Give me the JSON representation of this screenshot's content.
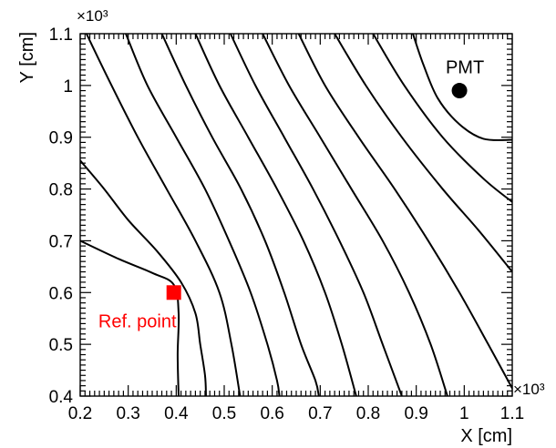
{
  "chart_data": {
    "type": "line",
    "xlabel": "X [cm]",
    "ylabel": "Y [cm]",
    "x_exponent_label": "×10³",
    "y_exponent_label": "×10³",
    "xlim": [
      0.2,
      1.1
    ],
    "ylim": [
      0.4,
      1.1
    ],
    "x_ticks": [
      {
        "value": 0.2,
        "label": "0.2"
      },
      {
        "value": 0.3,
        "label": "0.3"
      },
      {
        "value": 0.4,
        "label": "0.4"
      },
      {
        "value": 0.5,
        "label": "0.5"
      },
      {
        "value": 0.6,
        "label": "0.6"
      },
      {
        "value": 0.7,
        "label": "0.7"
      },
      {
        "value": 0.8,
        "label": "0.8"
      },
      {
        "value": 0.9,
        "label": "0.9"
      },
      {
        "value": 1.0,
        "label": "1"
      },
      {
        "value": 1.1,
        "label": "1.1"
      }
    ],
    "y_ticks": [
      {
        "value": 0.4,
        "label": "0.4"
      },
      {
        "value": 0.5,
        "label": "0.5"
      },
      {
        "value": 0.6,
        "label": "0.6"
      },
      {
        "value": 0.7,
        "label": "0.7"
      },
      {
        "value": 0.8,
        "label": "0.8"
      },
      {
        "value": 0.9,
        "label": "0.9"
      },
      {
        "value": 1.0,
        "label": "1"
      },
      {
        "value": 1.1,
        "label": "1.1"
      }
    ],
    "grid": false,
    "line_color": "#000000",
    "contours": [
      {
        "points": [
          [
            0.2,
            0.7
          ],
          [
            0.28,
            0.665
          ],
          [
            0.35,
            0.638
          ],
          [
            0.395,
            0.615
          ],
          [
            0.405,
            0.56
          ],
          [
            0.403,
            0.48
          ],
          [
            0.405,
            0.4
          ]
        ]
      },
      {
        "points": [
          [
            0.2,
            0.855
          ],
          [
            0.25,
            0.8
          ],
          [
            0.3,
            0.74
          ],
          [
            0.36,
            0.68
          ],
          [
            0.41,
            0.62
          ],
          [
            0.44,
            0.56
          ],
          [
            0.45,
            0.5
          ],
          [
            0.46,
            0.44
          ],
          [
            0.462,
            0.4
          ]
        ]
      },
      {
        "points": [
          [
            0.213,
            1.1
          ],
          [
            0.26,
            1.01
          ],
          [
            0.32,
            0.9
          ],
          [
            0.38,
            0.8
          ],
          [
            0.44,
            0.7
          ],
          [
            0.49,
            0.6
          ],
          [
            0.515,
            0.5
          ],
          [
            0.533,
            0.4
          ]
        ]
      },
      {
        "points": [
          [
            0.295,
            1.1
          ],
          [
            0.34,
            1.0
          ],
          [
            0.4,
            0.9
          ],
          [
            0.46,
            0.8
          ],
          [
            0.51,
            0.7
          ],
          [
            0.555,
            0.6
          ],
          [
            0.59,
            0.5
          ],
          [
            0.61,
            0.43
          ],
          [
            0.615,
            0.4
          ]
        ]
      },
      {
        "points": [
          [
            0.37,
            1.1
          ],
          [
            0.42,
            1.0
          ],
          [
            0.475,
            0.9
          ],
          [
            0.535,
            0.8
          ],
          [
            0.585,
            0.7
          ],
          [
            0.625,
            0.6
          ],
          [
            0.66,
            0.5
          ],
          [
            0.69,
            0.43
          ],
          [
            0.697,
            0.4
          ]
        ]
      },
      {
        "points": [
          [
            0.44,
            1.1
          ],
          [
            0.49,
            1.0
          ],
          [
            0.55,
            0.9
          ],
          [
            0.61,
            0.8
          ],
          [
            0.665,
            0.7
          ],
          [
            0.71,
            0.6
          ],
          [
            0.745,
            0.5
          ],
          [
            0.775,
            0.4
          ]
        ]
      },
      {
        "points": [
          [
            0.513,
            1.1
          ],
          [
            0.565,
            1.0
          ],
          [
            0.625,
            0.9
          ],
          [
            0.685,
            0.8
          ],
          [
            0.74,
            0.7
          ],
          [
            0.79,
            0.6
          ],
          [
            0.83,
            0.5
          ],
          [
            0.87,
            0.4
          ]
        ]
      },
      {
        "points": [
          [
            0.58,
            1.1
          ],
          [
            0.635,
            1.0
          ],
          [
            0.7,
            0.9
          ],
          [
            0.765,
            0.8
          ],
          [
            0.83,
            0.7
          ],
          [
            0.885,
            0.6
          ],
          [
            0.93,
            0.5
          ],
          [
            0.965,
            0.4
          ]
        ]
      },
      {
        "points": [
          [
            0.655,
            1.1
          ],
          [
            0.71,
            1.0
          ],
          [
            0.78,
            0.9
          ],
          [
            0.855,
            0.8
          ],
          [
            0.925,
            0.7
          ],
          [
            0.99,
            0.6
          ],
          [
            1.05,
            0.5
          ],
          [
            1.1,
            0.415
          ]
        ]
      },
      {
        "points": [
          [
            0.73,
            1.1
          ],
          [
            0.795,
            1.0
          ],
          [
            0.87,
            0.9
          ],
          [
            0.955,
            0.8
          ],
          [
            1.03,
            0.72
          ],
          [
            1.1,
            0.64
          ]
        ]
      },
      {
        "points": [
          [
            0.81,
            1.1
          ],
          [
            0.875,
            1.0
          ],
          [
            0.955,
            0.9
          ],
          [
            1.04,
            0.82
          ],
          [
            1.1,
            0.775
          ]
        ]
      },
      {
        "points": [
          [
            0.893,
            1.1
          ],
          [
            0.915,
            1.04
          ],
          [
            0.945,
            0.975
          ],
          [
            0.99,
            0.925
          ],
          [
            1.04,
            0.897
          ],
          [
            1.1,
            0.895
          ]
        ]
      }
    ],
    "annotations": [
      {
        "label": "PMT",
        "x": 0.99,
        "y": 0.99,
        "marker": "circle",
        "color": "#000000"
      },
      {
        "label": "Ref. point",
        "x": 0.395,
        "y": 0.6,
        "marker": "square",
        "color": "#ff0000"
      }
    ]
  }
}
